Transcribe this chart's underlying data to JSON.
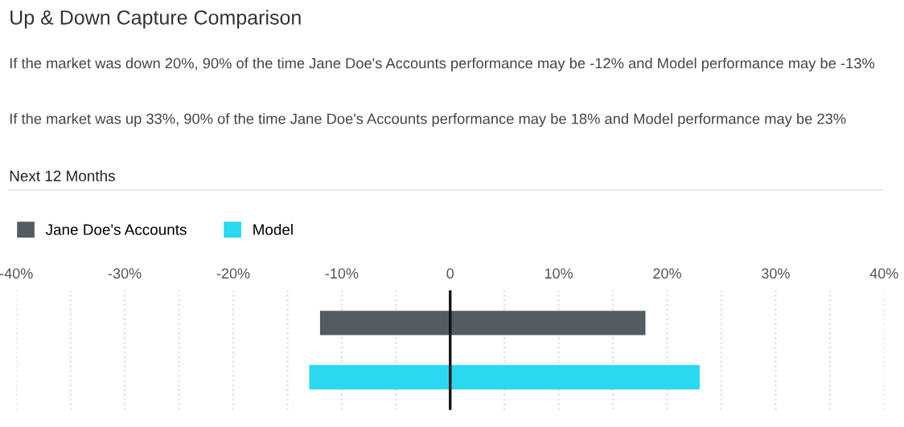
{
  "chart_data": {
    "type": "bar",
    "orientation": "horizontal",
    "title": "Up & Down Capture Comparison",
    "subtitle": "Next 12 Months",
    "annotations": [
      "If the market was down 20%, 90% of the time Jane Doe's Accounts performance may be -12% and Model performance may be -13%",
      "If the market was up 33%, 90% of the time Jane Doe's Accounts performance may be 18% and Model performance may be 23%"
    ],
    "categories": [
      null,
      null
    ],
    "series": [
      {
        "name": "Jane Doe's Accounts",
        "color": "#535c61",
        "base": [
          -12,
          null
        ],
        "values": [
          30,
          null
        ]
      },
      {
        "name": "Model",
        "color": "#2ad8f0",
        "base": [
          null,
          -13
        ],
        "values": [
          null,
          36
        ]
      }
    ],
    "xlim": [
      -40,
      40
    ],
    "xticks": [
      {
        "value": -40,
        "label": "-40%"
      },
      {
        "value": -35,
        "label": null
      },
      {
        "value": -30,
        "label": "-30%"
      },
      {
        "value": -25,
        "label": null
      },
      {
        "value": -20,
        "label": "-20%"
      },
      {
        "value": -15,
        "label": null
      },
      {
        "value": -10,
        "label": "-10%"
      },
      {
        "value": -5,
        "label": null
      },
      0,
      {
        "value": 5,
        "label": null
      },
      {
        "value": 10,
        "label": "10%"
      },
      {
        "value": 15,
        "label": null
      },
      {
        "value": 20,
        "label": "20%"
      },
      {
        "value": 25,
        "label": null
      },
      {
        "value": 30,
        "label": "30%"
      },
      {
        "value": 35,
        "label": null
      },
      {
        "value": 40,
        "label": "40%"
      }
    ],
    "ref_lines": [
      {
        "axis": "x",
        "value": 0,
        "color": "#111111"
      }
    ],
    "grid": "x",
    "legend": "top left",
    "tick_labels": "x"
  }
}
